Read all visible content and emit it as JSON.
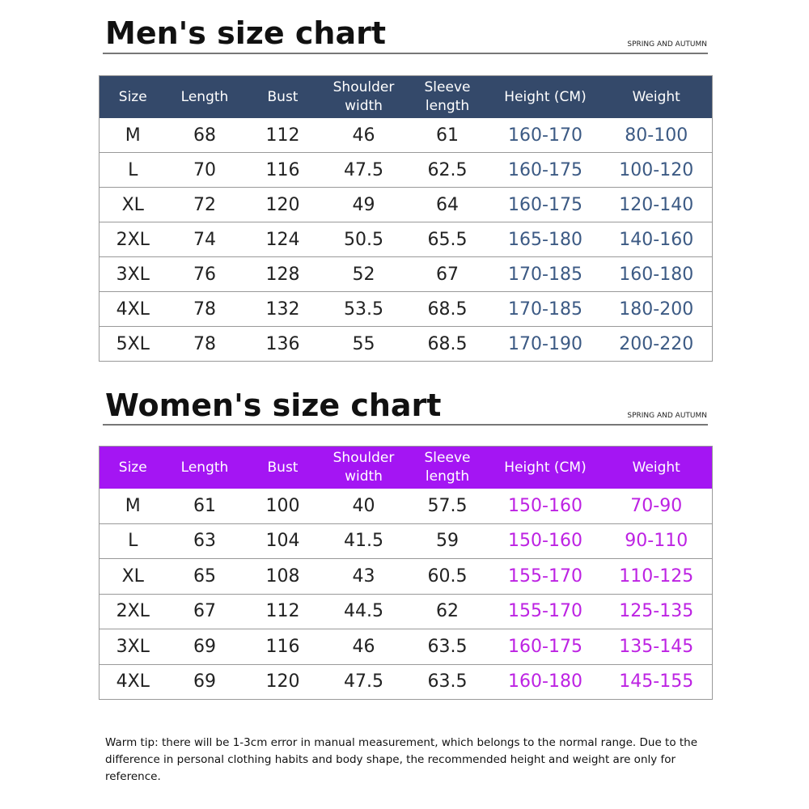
{
  "men": {
    "title": "Men's size chart",
    "season": "SPRING AND AUTUMN",
    "columns": [
      "Size",
      "Length",
      "Bust",
      "Shoulder width",
      "Sleeve length",
      "Height (CM)",
      "Weight"
    ],
    "rows": [
      [
        "M",
        "68",
        "112",
        "46",
        "61",
        "160-170",
        "80-100"
      ],
      [
        "L",
        "70",
        "116",
        "47.5",
        "62.5",
        "160-175",
        "100-120"
      ],
      [
        "XL",
        "72",
        "120",
        "49",
        "64",
        "160-175",
        "120-140"
      ],
      [
        "2XL",
        "74",
        "124",
        "50.5",
        "65.5",
        "165-180",
        "140-160"
      ],
      [
        "3XL",
        "76",
        "128",
        "52",
        "67",
        "170-185",
        "160-180"
      ],
      [
        "4XL",
        "78",
        "132",
        "53.5",
        "68.5",
        "170-185",
        "180-200"
      ],
      [
        "5XL",
        "78",
        "136",
        "55",
        "68.5",
        "170-190",
        "200-220"
      ]
    ]
  },
  "women": {
    "title": "Women's size chart",
    "season": "SPRING AND AUTUMN",
    "columns": [
      "Size",
      "Length",
      "Bust",
      "Shoulder width",
      "Sleeve length",
      "Height (CM)",
      "Weight"
    ],
    "rows": [
      [
        "M",
        "61",
        "100",
        "40",
        "57.5",
        "150-160",
        "70-90"
      ],
      [
        "L",
        "63",
        "104",
        "41.5",
        "59",
        "150-160",
        "90-110"
      ],
      [
        "XL",
        "65",
        "108",
        "43",
        "60.5",
        "155-170",
        "110-125"
      ],
      [
        "2XL",
        "67",
        "112",
        "44.5",
        "62",
        "155-170",
        "125-135"
      ],
      [
        "3XL",
        "69",
        "116",
        "46",
        "63.5",
        "160-175",
        "135-145"
      ],
      [
        "4XL",
        "69",
        "120",
        "47.5",
        "63.5",
        "160-180",
        "145-155"
      ]
    ]
  },
  "note": "Warm tip: there will be 1-3cm error in manual measurement, which belongs to the normal range. Due to the difference in personal clothing habits and body shape, the recommended height and weight are only for reference."
}
